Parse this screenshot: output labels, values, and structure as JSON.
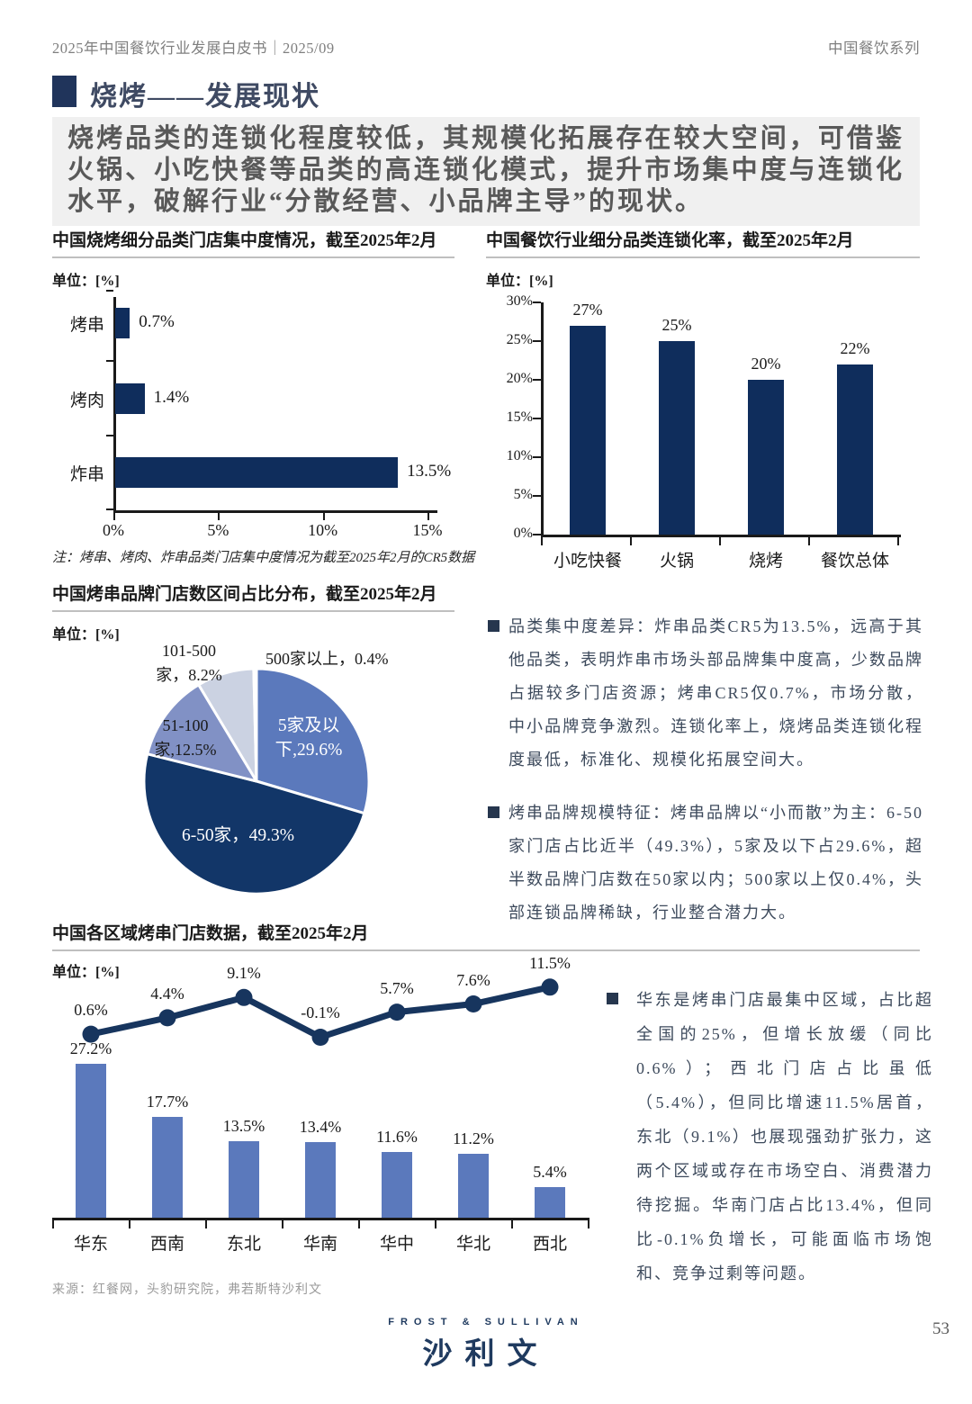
{
  "page": {
    "header_left": "2025年中国餐饮行业发展白皮书｜2025/09",
    "header_right": "中国餐饮系列",
    "section_title": "烧烤——发展现状",
    "highlight": "烧烤品类的连锁化程度较低，其规模化拓展存在较大空间，可借鉴火锅、小吃快餐等品类的高连锁化模式，提升市场集中度与连锁化水平，破解行业“分散经营、小品牌主导”的现状。",
    "source": "来源：红餐网，头豹研究院，弗若斯特沙利文",
    "logo_top": "FROST & SULLIVAN",
    "logo_main": "沙利文",
    "page_number": "53"
  },
  "bullets": [
    {
      "text": "品类集中度差异：炸串品类CR5为13.5%，远高于其他品类，表明炸串市场头部品牌集中度高，少数品牌占据较多门店资源；烤串CR5仅0.7%，市场分散，中小品牌竞争激烈。连锁化率上，烧烤品类连锁化程度最低，标准化、规模化拓展空间大。"
    },
    {
      "text": "烤串品牌规模特征：烤串品牌以“小而散”为主：6-50家门店占比近半（49.3%），5家及以下占29.6%，超半数品牌门店数在50家以内；500家以上仅0.4%，头部连锁品牌稀缺，行业整合潜力大。"
    },
    {
      "text": "华东是烤串门店最集中区域，占比超全国的25%，但增长放缓（同比0.6%）；西北门店占比虽低（5.4%），但同比增速11.5%居首，东北（9.1%）也展现强劲扩张力，这两个区域或存在市场空白、消费潜力待挖掘。华南门店占比13.4%，但同比-0.1%负增长，可能面临市场饱和、竞争过剩等问题。"
    }
  ],
  "chart_data": [
    {
      "type": "bar",
      "orientation": "horizontal",
      "title": "中国烧烤细分品类门店集中度情况，截至2025年2月",
      "unit": "单位：[%]",
      "categories": [
        "烤串",
        "烤肉",
        "炸串"
      ],
      "values": [
        0.7,
        1.4,
        13.5
      ],
      "value_labels": [
        "0.7%",
        "1.4%",
        "13.5%"
      ],
      "xlim": [
        0,
        15
      ],
      "xticks": [
        "0%",
        "5%",
        "10%",
        "15%"
      ],
      "bar_color": "#0f2d5c",
      "note": "注：烤串、烤肉、炸串品类门店集中度情况为截至2025年2月的CR5数据"
    },
    {
      "type": "bar",
      "orientation": "vertical",
      "title": "中国餐饮行业细分品类连锁化率，截至2025年2月",
      "unit": "单位：[%]",
      "categories": [
        "小吃快餐",
        "火锅",
        "烧烤",
        "餐饮总体"
      ],
      "values": [
        27,
        25,
        20,
        22
      ],
      "value_labels": [
        "27%",
        "25%",
        "20%",
        "22%"
      ],
      "ylim": [
        0,
        30
      ],
      "yticks": [
        "0%",
        "5%",
        "10%",
        "15%",
        "20%",
        "25%",
        "30%"
      ],
      "bar_color": "#0f2d5c"
    },
    {
      "type": "pie",
      "title": "中国烤串品牌门店数区间占比分布，截至2025年2月",
      "unit": "单位：[%]",
      "slices": [
        {
          "label_lines": [
            "5家及以",
            "下,29.6%"
          ],
          "value": 29.6,
          "color": "#5b79bc",
          "label_placement": "inside"
        },
        {
          "label_lines": [
            "6-50家，49.3%"
          ],
          "value": 49.3,
          "color": "#123668",
          "label_placement": "inside"
        },
        {
          "label_lines": [
            "51-100",
            "家,12.5%"
          ],
          "value": 12.5,
          "color": "#8191c5",
          "label_placement": "outside"
        },
        {
          "label_lines": [
            "101-500",
            "家，8.2%"
          ],
          "value": 8.2,
          "color": "#cbd2e2",
          "label_placement": "outside"
        },
        {
          "label_lines": [
            "500家以上，0.4%"
          ],
          "value": 0.4,
          "color": "#e9ebf2",
          "label_placement": "outside"
        }
      ]
    },
    {
      "type": "bar-line",
      "title": "中国各区域烤串门店数据，截至2025年2月",
      "unit": "单位：[%]",
      "categories": [
        "华东",
        "西南",
        "东北",
        "华南",
        "华中",
        "华北",
        "西北"
      ],
      "series": [
        {
          "type": "bar",
          "values": [
            27.2,
            17.7,
            13.5,
            13.4,
            11.6,
            11.2,
            5.4
          ],
          "labels": [
            "27.2%",
            "17.7%",
            "13.5%",
            "13.4%",
            "11.6%",
            "11.2%",
            "5.4%"
          ],
          "color": "#5b79bc"
        },
        {
          "type": "line",
          "values": [
            0.6,
            4.4,
            9.1,
            -0.1,
            5.7,
            7.6,
            11.5
          ],
          "labels": [
            "0.6%",
            "4.4%",
            "9.1%",
            "-0.1%",
            "5.7%",
            "7.6%",
            "11.5%"
          ],
          "color": "#17355e"
        }
      ]
    }
  ]
}
